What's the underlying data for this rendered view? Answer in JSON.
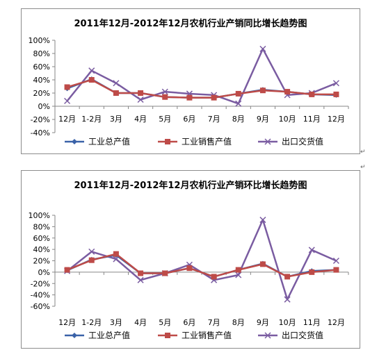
{
  "chart_data": [
    {
      "type": "line",
      "title": "2011年12月-2012年12月农机行业产销同比增长趋势图",
      "categories": [
        "12月",
        "1-2月",
        "3月",
        "4月",
        "5月",
        "6月",
        "7月",
        "8月",
        "9月",
        "10月",
        "11月",
        "12月"
      ],
      "ylim": [
        -0.4,
        1.0
      ],
      "yticks": [
        "100%",
        "80%",
        "60%",
        "40%",
        "20%",
        "0%",
        "-20%",
        "-40%"
      ],
      "grid": false,
      "legend": "bottom",
      "series": [
        {
          "name": "工业总产值",
          "color": "#3a62a8",
          "marker": "diamond",
          "values": [
            0.27,
            0.41,
            0.2,
            0.2,
            0.14,
            0.13,
            0.13,
            0.19,
            0.25,
            0.22,
            0.18,
            0.17
          ]
        },
        {
          "name": "工业销售产值",
          "color": "#be4b48",
          "marker": "square",
          "values": [
            0.29,
            0.4,
            0.2,
            0.2,
            0.14,
            0.13,
            0.13,
            0.19,
            0.24,
            0.22,
            0.18,
            0.18
          ]
        },
        {
          "name": "出口交货值",
          "color": "#7a5ca1",
          "marker": "x",
          "values": [
            0.08,
            0.54,
            0.35,
            0.1,
            0.22,
            0.19,
            0.17,
            0.04,
            0.87,
            0.17,
            0.2,
            0.35
          ]
        }
      ]
    },
    {
      "type": "line",
      "title": "2011年12月-2012年12月农机行业产销环比增长趋势图",
      "categories": [
        "12月",
        "1-2月",
        "3月",
        "4月",
        "5月",
        "6月",
        "7月",
        "8月",
        "9月",
        "10月",
        "11月",
        "12月"
      ],
      "ylim": [
        -0.6,
        1.0
      ],
      "yticks": [
        "100%",
        "80%",
        "60%",
        "40%",
        "20%",
        "0%",
        "-20%",
        "-40%",
        "-60%"
      ],
      "grid": false,
      "legend": "bottom",
      "series": [
        {
          "name": "工业总产值",
          "color": "#3a62a8",
          "marker": "diamond",
          "values": [
            0.03,
            0.22,
            0.3,
            -0.02,
            -0.02,
            0.07,
            -0.08,
            0.04,
            0.15,
            -0.08,
            0.02,
            0.04
          ]
        },
        {
          "name": "工业销售产值",
          "color": "#be4b48",
          "marker": "square",
          "values": [
            0.04,
            0.21,
            0.32,
            -0.02,
            -0.02,
            0.07,
            -0.08,
            0.04,
            0.14,
            -0.08,
            0.0,
            0.04
          ]
        },
        {
          "name": "出口交货值",
          "color": "#7a5ca1",
          "marker": "x",
          "values": [
            0.02,
            0.36,
            0.23,
            -0.14,
            -0.02,
            0.13,
            -0.14,
            -0.05,
            0.92,
            -0.48,
            0.39,
            0.2
          ]
        }
      ]
    }
  ],
  "paragraph_mark": "↵"
}
